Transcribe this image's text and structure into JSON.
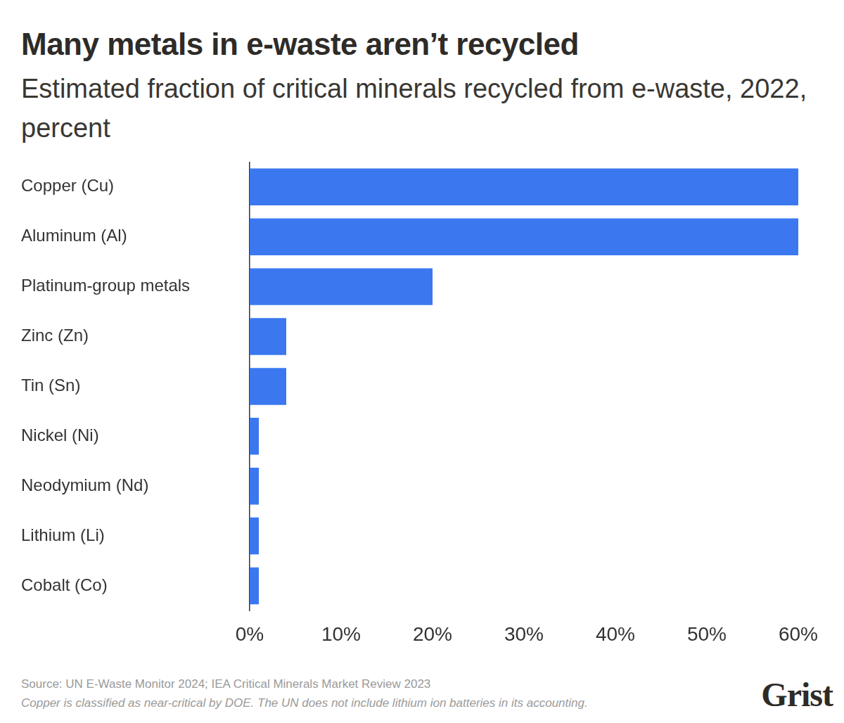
{
  "chart_data": {
    "type": "bar",
    "orientation": "horizontal",
    "title": "Many metals in e-waste aren’t recycled",
    "subtitle": "Estimated fraction of critical minerals recycled from e-waste, 2022, percent",
    "categories": [
      "Copper (Cu)",
      "Aluminum (Al)",
      "Platinum-group metals",
      "Zinc (Zn)",
      "Tin (Sn)",
      "Nickel (Ni)",
      "Neodymium (Nd)",
      "Lithium (Li)",
      "Cobalt (Co)"
    ],
    "values": [
      60,
      60,
      20,
      4,
      4,
      1,
      1,
      1,
      1
    ],
    "color": "#3b78f0",
    "xlim": [
      0,
      60
    ],
    "xticks": [
      {
        "value": 0,
        "label": "0%"
      },
      {
        "value": 10,
        "label": "10%"
      },
      {
        "value": 20,
        "label": "20%"
      },
      {
        "value": 30,
        "label": "30%"
      },
      {
        "value": 40,
        "label": "40%"
      },
      {
        "value": 50,
        "label": "50%"
      },
      {
        "value": 60,
        "label": "60%"
      }
    ],
    "grid": false,
    "data_labels": false,
    "source": "Source: UN E-Waste Monitor 2024; IEA Critical Minerals Market Review 2023",
    "note": "Copper is classified as near-critical by DOE. The UN does not include lithium ion batteries in its accounting.",
    "brand": "Grist"
  }
}
